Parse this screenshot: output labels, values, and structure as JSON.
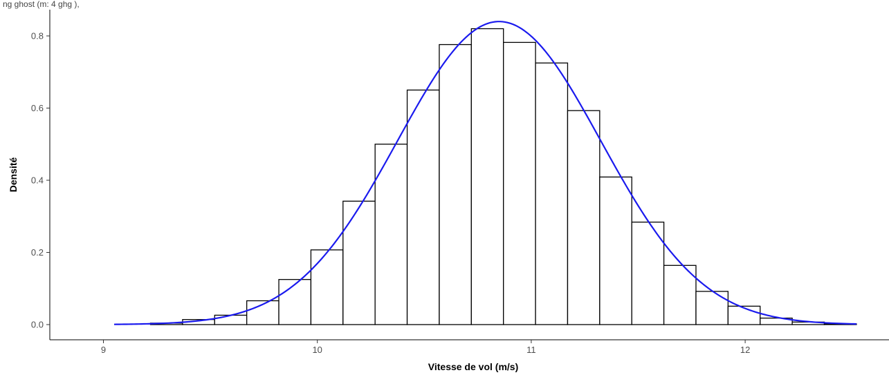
{
  "top_caption": "ng ghost (m: 4 ghg ),",
  "chart_data": {
    "type": "bar",
    "xlabel": "Vitesse de vol (m/s)",
    "ylabel": "Densité",
    "xlim": [
      8.9,
      12.6
    ],
    "ylim": [
      0.0,
      0.84
    ],
    "x_ticks": [
      9,
      10,
      11,
      12
    ],
    "x_tick_labels": [
      "9",
      "10",
      "11",
      "12"
    ],
    "y_ticks": [
      0.0,
      0.2,
      0.4,
      0.6,
      0.8
    ],
    "y_tick_labels": [
      "0.0",
      "0.2",
      "0.4",
      "0.6",
      "0.8"
    ],
    "bin_edges": [
      8.92,
      9.07,
      9.22,
      9.37,
      9.52,
      9.67,
      9.82,
      9.97,
      10.12,
      10.27,
      10.42,
      10.57,
      10.72,
      10.87,
      11.02,
      11.17,
      11.32,
      11.47,
      11.62,
      11.77,
      11.92,
      12.07,
      12.22,
      12.37,
      12.52
    ],
    "values": [
      0.0,
      0.0,
      0.004,
      0.014,
      0.026,
      0.066,
      0.125,
      0.207,
      0.342,
      0.5,
      0.65,
      0.776,
      0.82,
      0.782,
      0.725,
      0.593,
      0.409,
      0.284,
      0.164,
      0.092,
      0.051,
      0.018,
      0.007,
      0.002
    ],
    "density_curve": {
      "type": "normal",
      "mean": 10.85,
      "sd": 0.475,
      "x_range": [
        9.05,
        12.52
      ],
      "color": "#1a1aee"
    },
    "bar_fill": "#ffffff",
    "bar_stroke": "#000000",
    "grid": false
  }
}
